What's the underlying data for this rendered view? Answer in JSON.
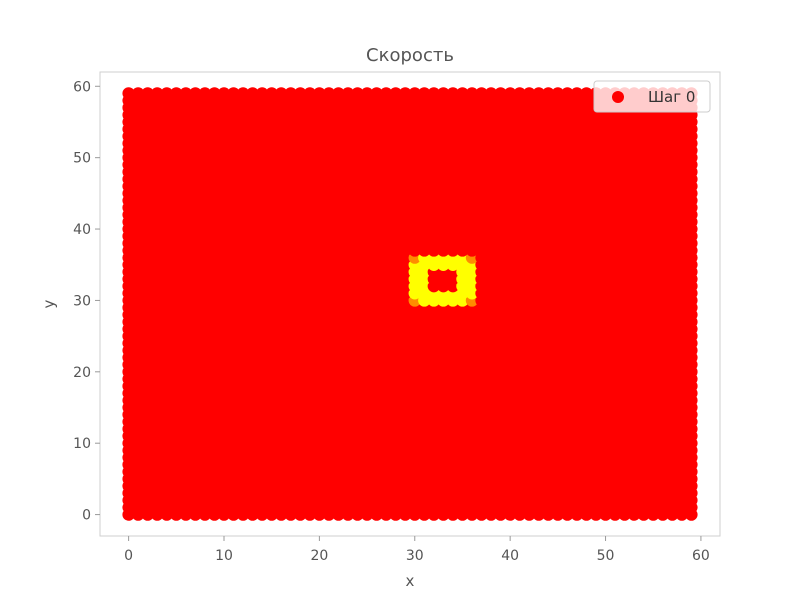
{
  "chart_data": {
    "type": "scatter",
    "title": "Скорость",
    "xlabel": "x",
    "ylabel": "y",
    "xlim": [
      -3,
      62
    ],
    "ylim": [
      -3,
      62
    ],
    "xticks": [
      0,
      10,
      20,
      30,
      40,
      50,
      60
    ],
    "yticks": [
      0,
      10,
      20,
      30,
      40,
      50,
      60
    ],
    "grid": false,
    "legend_position": "top-right",
    "grid_points": {
      "x_min": 0,
      "x_max": 59,
      "y_min": 0,
      "y_max": 59,
      "step": 1
    },
    "series": [
      {
        "name": "Шаг 0",
        "color": "#ff0000"
      }
    ],
    "regions": [
      {
        "label": "background",
        "x_range": [
          0,
          59
        ],
        "y_range": [
          0,
          59
        ],
        "color": "#ff0000"
      },
      {
        "label": "ring",
        "x_range": [
          30,
          36
        ],
        "y_range": [
          30,
          36
        ],
        "color": "#ffff00"
      },
      {
        "label": "ring-corner",
        "points": [
          [
            30,
            30
          ],
          [
            36,
            30
          ],
          [
            30,
            36
          ],
          [
            36,
            36
          ]
        ],
        "color": "#ff8c00"
      },
      {
        "label": "core",
        "x_range": [
          32,
          34
        ],
        "y_range": [
          32,
          34
        ],
        "color": "#ff0000"
      }
    ]
  }
}
